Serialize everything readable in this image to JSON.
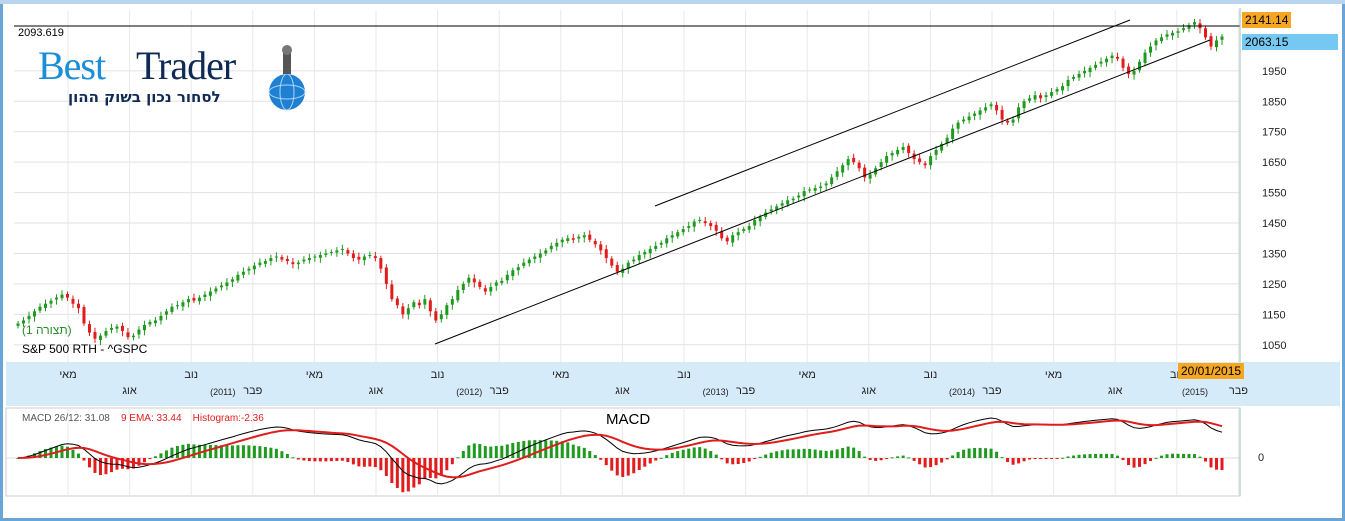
{
  "header": {
    "top_value": "2093.619",
    "price_tag_high": "2141.14",
    "price_tag_last": "2063.15",
    "date_tag": "20/01/2015"
  },
  "logo": {
    "part1": "Best",
    "part2": "Trader",
    "subtitle": "לסחור נכון בשוק ההון"
  },
  "series": {
    "name": "S&P 500 RTH - ^GSPC",
    "sub_label": "(תצורה 1)"
  },
  "colors": {
    "up": "#1e9a1e",
    "down": "#e01c1c",
    "high_tag_bg": "#f5a623",
    "last_tag_bg": "#74c8f2",
    "date_tag_bg": "#f5a623",
    "axis_band": "#d6ebfa",
    "frame": "#6aa5d8",
    "macd_line": "#000000",
    "signal_line": "#e01c1c"
  },
  "y_axis": {
    "ticks": [
      "1950",
      "1850",
      "1750",
      "1650",
      "1550",
      "1450",
      "1350",
      "1250",
      "1150",
      "1050"
    ]
  },
  "x_axis": {
    "month_labels": [
      "מאי",
      "אוג",
      "נוב",
      "פבר",
      "מאי",
      "אוג",
      "נוב",
      "פבר",
      "מאי",
      "אוג",
      "נוב",
      "פבר",
      "מאי",
      "אוג",
      "נוב",
      "פבר",
      "מאי",
      "אוג",
      "נוב",
      "פבר"
    ],
    "year_labels": [
      "(2011)",
      "(2012)",
      "(2013)",
      "(2014)",
      "(2015)"
    ]
  },
  "macd": {
    "title": "MACD",
    "legend_macd": "MACD 26/12: 31.08",
    "legend_ema": "9 EMA: 33.44",
    "legend_hist": "Histogram:-2.36",
    "zero_label": "0"
  },
  "chart_data": {
    "type": "candlestick",
    "instrument": "S&P 500 RTH - ^GSPC",
    "y_range": [
      1000,
      2150
    ],
    "last_close": 2063.15,
    "high_line": 2141.14,
    "top_value": 2093.619,
    "weekly_close": [
      1120,
      1130,
      1145,
      1160,
      1175,
      1185,
      1195,
      1205,
      1215,
      1205,
      1185,
      1170,
      1120,
      1090,
      1070,
      1080,
      1095,
      1105,
      1110,
      1095,
      1075,
      1080,
      1100,
      1115,
      1125,
      1130,
      1145,
      1160,
      1175,
      1180,
      1190,
      1200,
      1195,
      1205,
      1215,
      1225,
      1235,
      1245,
      1255,
      1265,
      1280,
      1290,
      1300,
      1310,
      1320,
      1325,
      1335,
      1340,
      1330,
      1325,
      1315,
      1320,
      1330,
      1335,
      1340,
      1345,
      1350,
      1355,
      1360,
      1365,
      1350,
      1335,
      1330,
      1340,
      1345,
      1335,
      1300,
      1250,
      1200,
      1180,
      1150,
      1170,
      1190,
      1180,
      1200,
      1160,
      1130,
      1150,
      1180,
      1200,
      1230,
      1250,
      1270,
      1255,
      1240,
      1225,
      1240,
      1255,
      1260,
      1280,
      1295,
      1305,
      1320,
      1330,
      1340,
      1350,
      1360,
      1375,
      1385,
      1395,
      1400,
      1395,
      1405,
      1410,
      1395,
      1380,
      1360,
      1335,
      1310,
      1290,
      1300,
      1320,
      1330,
      1345,
      1355,
      1365,
      1375,
      1385,
      1400,
      1410,
      1420,
      1430,
      1440,
      1455,
      1460,
      1450,
      1440,
      1425,
      1400,
      1390,
      1410,
      1420,
      1430,
      1440,
      1460,
      1470,
      1485,
      1495,
      1505,
      1515,
      1525,
      1530,
      1540,
      1555,
      1560,
      1565,
      1570,
      1580,
      1600,
      1620,
      1640,
      1660,
      1650,
      1630,
      1600,
      1610,
      1630,
      1650,
      1670,
      1680,
      1690,
      1700,
      1680,
      1660,
      1650,
      1640,
      1670,
      1690,
      1710,
      1730,
      1760,
      1780,
      1790,
      1800,
      1810,
      1820,
      1830,
      1840,
      1820,
      1790,
      1780,
      1790,
      1830,
      1850,
      1860,
      1870,
      1860,
      1870,
      1880,
      1890,
      1900,
      1920,
      1930,
      1940,
      1950,
      1960,
      1970,
      1980,
      1990,
      2000,
      1990,
      1960,
      1940,
      1950,
      1980,
      2010,
      2030,
      2050,
      2060,
      2070,
      2075,
      2080,
      2090,
      2100,
      2110,
      2090,
      2060,
      2030,
      2050,
      2063
    ]
  }
}
